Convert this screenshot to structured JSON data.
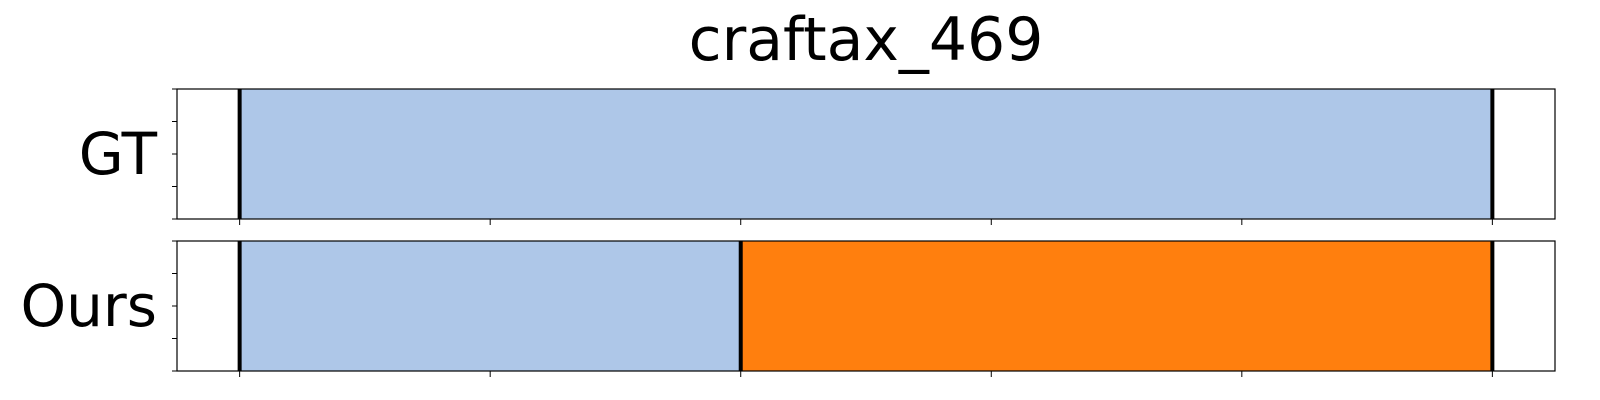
{
  "chart_data": {
    "type": "timeline",
    "title": "craftax_469",
    "xlim": [
      -0.25,
      5.25
    ],
    "x_ticks": [
      0,
      1,
      2,
      3,
      4,
      5
    ],
    "rows": [
      {
        "name": "GT",
        "segments": [
          {
            "start": 0,
            "end": 5,
            "color": "#aec7e8"
          }
        ],
        "boundaries": [
          0,
          5
        ]
      },
      {
        "name": "Ours",
        "segments": [
          {
            "start": 0,
            "end": 2,
            "color": "#aec7e8"
          },
          {
            "start": 2,
            "end": 5,
            "color": "#ff7f0e"
          }
        ],
        "boundaries": [
          0,
          2,
          5
        ]
      }
    ],
    "colors": {
      "segment_a": "#aec7e8",
      "segment_b": "#ff7f0e",
      "boundary": "#000000",
      "frame": "#000000"
    }
  }
}
